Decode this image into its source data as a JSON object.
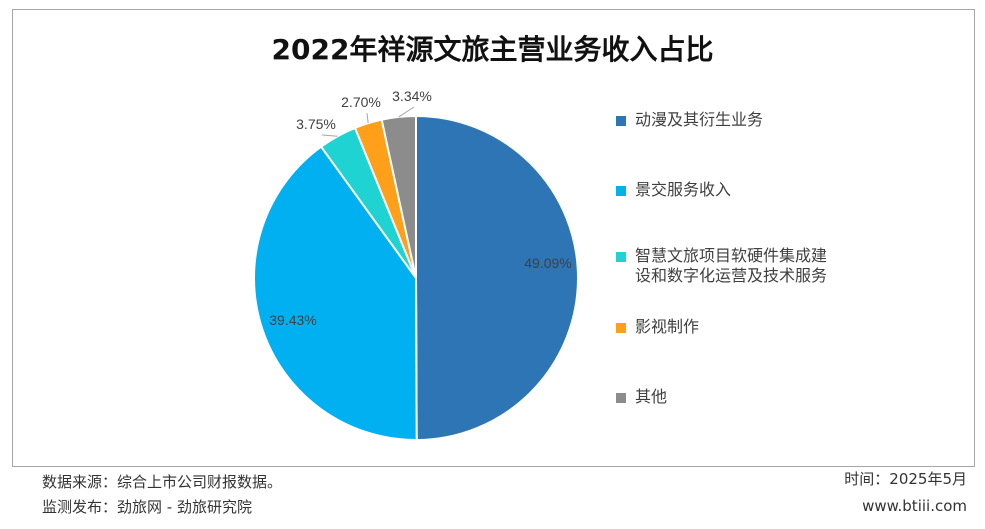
{
  "chart_data": {
    "type": "pie",
    "title": "2022年祥源文旅主营业务收入占比",
    "slices": [
      {
        "label": "动漫及其衍生业务",
        "value": 49.09,
        "display": "49.09%",
        "color": "#2e75b6"
      },
      {
        "label": "景交服务收入",
        "value": 39.43,
        "display": "39.43%",
        "color": "#00b0f0"
      },
      {
        "label": "智慧文旅项目软硬件集成建设和数字化运营及技术服务",
        "value": 3.75,
        "display": "3.75%",
        "color": "#1fd3d3"
      },
      {
        "label": "影视制作",
        "value": 2.7,
        "display": "2.70%",
        "color": "#ff9f1a"
      },
      {
        "label": "其他",
        "value": 3.34,
        "display": "3.34%",
        "color": "#8c8c8c"
      }
    ],
    "legend_position": "right"
  },
  "footer": {
    "source": "数据来源：综合上市公司财报数据。",
    "publisher": "监测发布：劲旅网 - 劲旅研究院",
    "time": "时间：2025年5月",
    "site": "www.btiii.com"
  }
}
